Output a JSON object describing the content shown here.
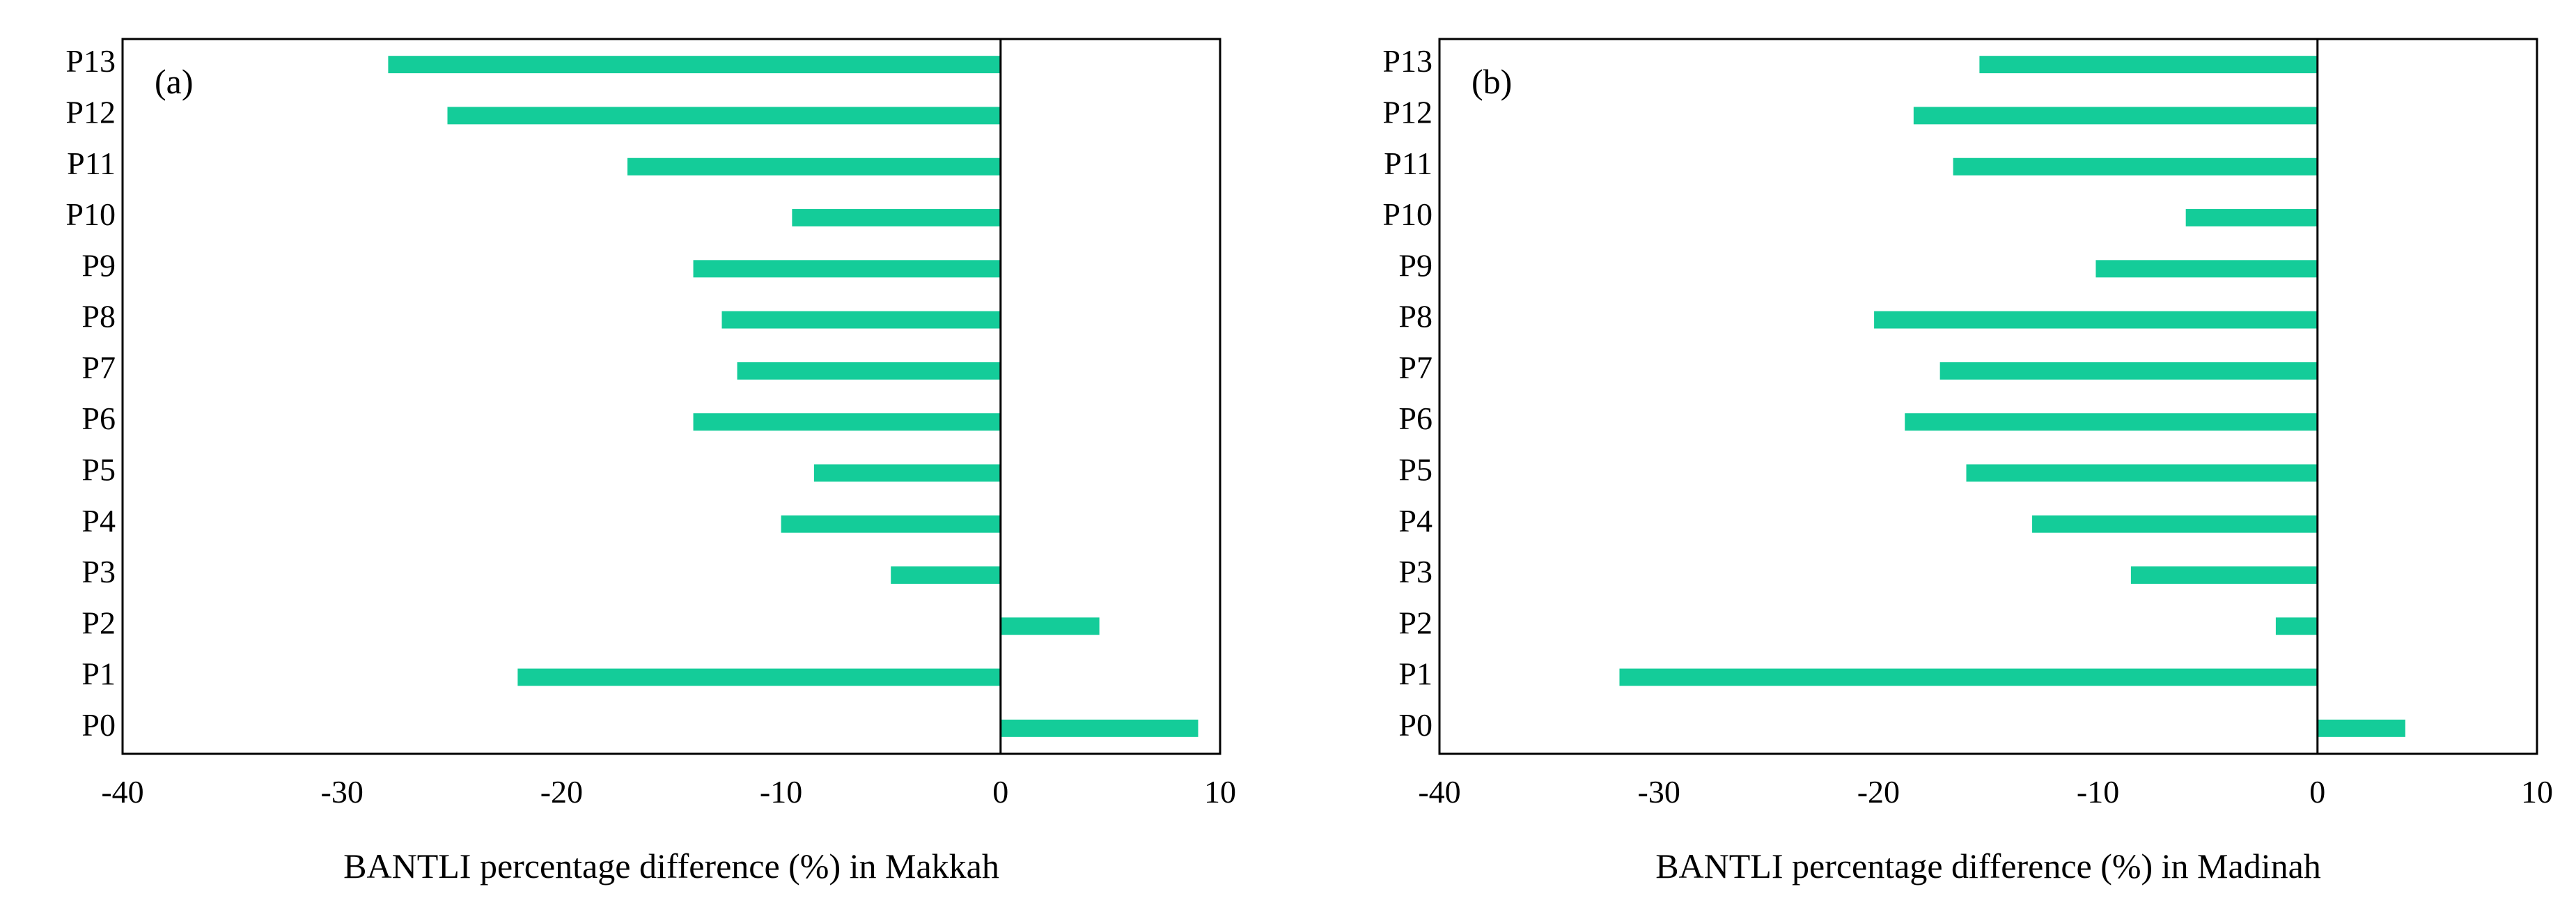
{
  "chart_data": [
    {
      "type": "bar",
      "orientation": "horizontal",
      "panel_label": "(a)",
      "categories": [
        "P0",
        "P1",
        "P2",
        "P3",
        "P4",
        "P5",
        "P6",
        "P7",
        "P8",
        "P9",
        "P10",
        "P11",
        "P12",
        "P13"
      ],
      "values": [
        9.0,
        -22.0,
        4.5,
        -5.0,
        -10.0,
        -8.5,
        -14.0,
        -12.0,
        -12.7,
        -14.0,
        -9.5,
        -17.0,
        -25.2,
        -27.9
      ],
      "xlabel": "BANTLI percentage difference (%) in Makkah",
      "ylabel": "",
      "xlim": [
        -40,
        10
      ],
      "xticks": [
        "-40",
        "-30",
        "-20",
        "-10",
        "0",
        "10"
      ],
      "grid": false,
      "bar_color": "#14CC99"
    },
    {
      "type": "bar",
      "orientation": "horizontal",
      "panel_label": "(b)",
      "categories": [
        "P0",
        "P1",
        "P2",
        "P3",
        "P4",
        "P5",
        "P6",
        "P7",
        "P8",
        "P9",
        "P10",
        "P11",
        "P12",
        "P13"
      ],
      "values": [
        4.0,
        -31.8,
        -1.9,
        -8.5,
        -13.0,
        -16.0,
        -18.8,
        -17.2,
        -20.2,
        -10.1,
        -6.0,
        -16.6,
        -18.4,
        -15.4
      ],
      "xlabel": "BANTLI percentage difference (%) in Madinah",
      "ylabel": "",
      "xlim": [
        -40,
        10
      ],
      "xticks": [
        "-40",
        "-30",
        "-20",
        "-10",
        "0",
        "10"
      ],
      "grid": false,
      "bar_color": "#14CC99"
    }
  ]
}
